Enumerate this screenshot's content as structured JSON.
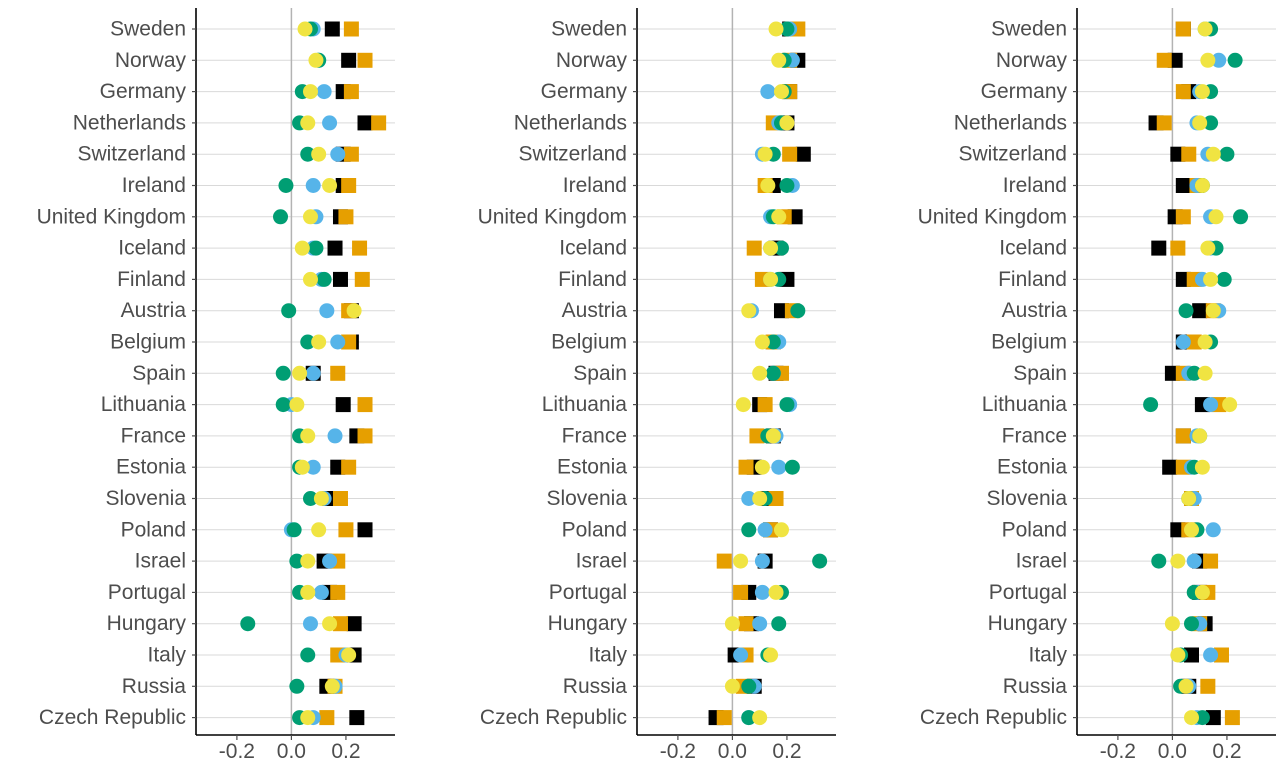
{
  "colors": {
    "black": "#000000",
    "orange": "#E69F00",
    "blue": "#56B4E9",
    "green": "#009E73",
    "yellow": "#F0E442",
    "zero_line": "#b3b3b3",
    "grid": "#d9d9d9",
    "axis": "#000000",
    "text": "#4d4d4d"
  },
  "chart_data": [
    {
      "type": "scatter",
      "xlim": [
        -0.35,
        0.38
      ],
      "x_ticks": [
        -0.2,
        0.0,
        0.2
      ],
      "x_tick_labels": [
        "-0.2",
        "0.0",
        "0.2"
      ],
      "grid": true,
      "categories": [
        "Sweden",
        "Norway",
        "Germany",
        "Netherlands",
        "Switzerland",
        "Ireland",
        "United Kingdom",
        "Iceland",
        "Finland",
        "Austria",
        "Belgium",
        "Spain",
        "Lithuania",
        "France",
        "Estonia",
        "Slovenia",
        "Poland",
        "Israel",
        "Portugal",
        "Hungary",
        "Italy",
        "Russia",
        "Czech Republic"
      ],
      "series": [
        {
          "marker": "square",
          "color": "black",
          "values": [
            0.15,
            0.21,
            0.19,
            0.27,
            0.19,
            0.19,
            0.18,
            0.16,
            0.18,
            0.22,
            0.22,
            0.08,
            0.19,
            0.24,
            0.17,
            0.14,
            0.27,
            0.12,
            0.14,
            0.23,
            0.23,
            0.13,
            0.24
          ]
        },
        {
          "marker": "square",
          "color": "orange",
          "values": [
            0.22,
            0.27,
            0.22,
            0.32,
            0.22,
            0.21,
            0.2,
            0.25,
            0.26,
            0.21,
            0.21,
            0.17,
            0.27,
            0.27,
            0.21,
            0.18,
            0.2,
            0.17,
            0.17,
            0.18,
            0.17,
            0.16,
            0.13
          ]
        },
        {
          "marker": "circle",
          "color": "blue",
          "values": [
            0.08,
            0.1,
            0.12,
            0.14,
            0.17,
            0.08,
            0.09,
            0.08,
            0.11,
            0.13,
            0.17,
            0.08,
            0.0,
            0.16,
            0.08,
            0.12,
            0.0,
            0.14,
            0.11,
            0.07,
            0.2,
            0.16,
            0.08
          ]
        },
        {
          "marker": "circle",
          "color": "green",
          "values": [
            0.07,
            0.1,
            0.04,
            0.03,
            0.06,
            -0.02,
            -0.04,
            0.09,
            0.12,
            -0.01,
            0.06,
            -0.03,
            -0.03,
            0.03,
            0.03,
            0.07,
            0.01,
            0.02,
            0.03,
            -0.16,
            0.06,
            0.02,
            0.03
          ]
        },
        {
          "marker": "circle",
          "color": "yellow",
          "values": [
            0.05,
            0.09,
            0.07,
            0.06,
            0.1,
            0.14,
            0.07,
            0.04,
            0.07,
            0.23,
            0.1,
            0.03,
            0.02,
            0.06,
            0.04,
            0.11,
            0.1,
            0.06,
            0.06,
            0.14,
            0.21,
            0.15,
            0.06
          ]
        }
      ]
    },
    {
      "type": "scatter",
      "xlim": [
        -0.35,
        0.38
      ],
      "x_ticks": [
        -0.2,
        0.0,
        0.2
      ],
      "x_tick_labels": [
        "-0.2",
        "0.0",
        "0.2"
      ],
      "grid": true,
      "categories": [
        "Sweden",
        "Norway",
        "Germany",
        "Netherlands",
        "Switzerland",
        "Ireland",
        "United Kingdom",
        "Iceland",
        "Finland",
        "Austria",
        "Belgium",
        "Spain",
        "Lithuania",
        "France",
        "Estonia",
        "Slovenia",
        "Poland",
        "Israel",
        "Portugal",
        "Hungary",
        "Italy",
        "Russia",
        "Czech Republic"
      ],
      "series": [
        {
          "marker": "square",
          "color": "black",
          "values": [
            0.21,
            0.24,
            0.21,
            0.2,
            0.26,
            0.15,
            0.23,
            0.16,
            0.2,
            0.18,
            0.15,
            0.16,
            0.1,
            0.15,
            0.08,
            0.13,
            0.14,
            0.12,
            0.06,
            0.07,
            0.01,
            0.08,
            -0.06
          ]
        },
        {
          "marker": "square",
          "color": "orange",
          "values": [
            0.24,
            0.21,
            0.21,
            0.15,
            0.21,
            0.12,
            0.19,
            0.08,
            0.11,
            0.22,
            0.15,
            0.18,
            0.12,
            0.09,
            0.05,
            0.16,
            0.14,
            -0.03,
            0.03,
            0.05,
            0.05,
            0.04,
            -0.03
          ]
        },
        {
          "marker": "circle",
          "color": "blue",
          "values": [
            0.21,
            0.22,
            0.13,
            0.17,
            0.11,
            0.22,
            0.14,
            0.14,
            0.14,
            0.07,
            0.17,
            0.15,
            0.21,
            0.16,
            0.17,
            0.06,
            0.12,
            0.11,
            0.11,
            0.1,
            0.03,
            0.08,
            0.06
          ]
        },
        {
          "marker": "circle",
          "color": "green",
          "values": [
            0.2,
            0.19,
            0.19,
            0.18,
            0.15,
            0.2,
            0.15,
            0.18,
            0.17,
            0.24,
            0.15,
            0.15,
            0.2,
            0.13,
            0.22,
            0.12,
            0.06,
            0.32,
            0.18,
            0.17,
            0.13,
            0.06,
            0.06
          ]
        },
        {
          "marker": "circle",
          "color": "yellow",
          "values": [
            0.16,
            0.17,
            0.18,
            0.2,
            0.12,
            0.13,
            0.17,
            0.14,
            0.14,
            0.06,
            0.11,
            0.1,
            0.04,
            0.15,
            0.11,
            0.1,
            0.18,
            0.03,
            0.16,
            0.0,
            0.14,
            0.0,
            0.1
          ]
        }
      ]
    },
    {
      "type": "scatter",
      "xlim": [
        -0.35,
        0.38
      ],
      "x_ticks": [
        -0.2,
        0.0,
        0.2
      ],
      "x_tick_labels": [
        "-0.2",
        "0.0",
        "0.2"
      ],
      "grid": true,
      "categories": [
        "Sweden",
        "Norway",
        "Germany",
        "Netherlands",
        "Switzerland",
        "Ireland",
        "United Kingdom",
        "Iceland",
        "Finland",
        "Austria",
        "Belgium",
        "Spain",
        "Lithuania",
        "France",
        "Estonia",
        "Slovenia",
        "Poland",
        "Israel",
        "Portugal",
        "Hungary",
        "Italy",
        "Russia",
        "Czech Republic"
      ],
      "series": [
        {
          "marker": "square",
          "color": "black",
          "values": [
            0.04,
            0.01,
            0.06,
            -0.06,
            0.02,
            0.04,
            0.01,
            -0.05,
            0.04,
            0.1,
            0.04,
            0.0,
            0.11,
            0.04,
            -0.01,
            0.07,
            0.02,
            0.1,
            0.1,
            0.12,
            0.07,
            0.06,
            0.15
          ]
        },
        {
          "marker": "square",
          "color": "orange",
          "values": [
            0.04,
            -0.03,
            0.04,
            -0.03,
            0.06,
            0.09,
            0.04,
            0.02,
            0.08,
            0.15,
            0.08,
            0.04,
            0.17,
            0.04,
            0.04,
            0.07,
            0.06,
            0.14,
            0.13,
            0.1,
            0.18,
            0.13,
            0.22
          ]
        },
        {
          "marker": "circle",
          "color": "blue",
          "values": [
            0.12,
            0.17,
            0.1,
            0.09,
            0.13,
            0.09,
            0.14,
            0.14,
            0.11,
            0.17,
            0.04,
            0.06,
            0.14,
            0.09,
            0.07,
            0.08,
            0.15,
            0.08,
            0.09,
            0.1,
            0.14,
            0.06,
            0.09
          ]
        },
        {
          "marker": "circle",
          "color": "green",
          "values": [
            0.14,
            0.23,
            0.14,
            0.14,
            0.2,
            0.11,
            0.25,
            0.16,
            0.19,
            0.05,
            0.14,
            0.08,
            -0.08,
            0.1,
            0.08,
            0.06,
            0.09,
            -0.05,
            0.08,
            0.07,
            0.03,
            0.03,
            0.11
          ]
        },
        {
          "marker": "circle",
          "color": "yellow",
          "values": [
            0.12,
            0.13,
            0.11,
            0.1,
            0.15,
            0.11,
            0.16,
            0.13,
            0.14,
            0.15,
            0.12,
            0.12,
            0.21,
            0.1,
            0.11,
            0.06,
            0.07,
            0.02,
            0.11,
            0.0,
            0.02,
            0.05,
            0.07
          ]
        }
      ]
    }
  ]
}
